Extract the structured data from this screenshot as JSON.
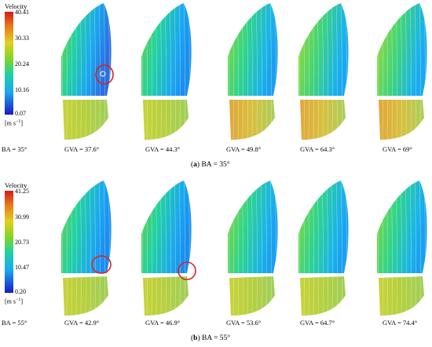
{
  "panels": [
    {
      "caption_letter": "(a)",
      "caption_text": "BA = 35°",
      "colorbar": {
        "title": "Velocity",
        "ticks": [
          "40.41",
          "30.33",
          "20.24",
          "10.16",
          "0.07"
        ],
        "unit_base": "[m s",
        "unit_sup": "−1",
        "unit_close": "]"
      },
      "ba_label": "BA = 35°",
      "cases": [
        "GVA = 37.6°",
        "GVA = 44.3°",
        "GVA = 49.8°",
        "GVA = 64.3°",
        "GVA = 69°"
      ],
      "highlighted_case_index": 0
    },
    {
      "caption_letter": "(b)",
      "caption_text": "BA = 55°",
      "colorbar": {
        "title": "Velocity",
        "ticks": [
          "41.25",
          "30.99",
          "20.73",
          "10.47",
          "0.20"
        ],
        "unit_base": "[m s",
        "unit_sup": "−1",
        "unit_close": "]"
      },
      "ba_label": "BA = 55°",
      "cases": [
        "GVA = 42.9°",
        "GVA = 46.9°",
        "GVA = 53.6°",
        "GVA = 64.7°",
        "GVA = 74.4°"
      ],
      "highlighted_case_index": 0
    }
  ],
  "colors": {
    "colormap": [
      "#1a1ac8",
      "#1aa8f0",
      "#22d2a0",
      "#7ed428",
      "#e2d01e",
      "#e87a1a",
      "#d61a1a"
    ],
    "highlight_circle": "#e0201e",
    "streamline": "#ffffff"
  }
}
